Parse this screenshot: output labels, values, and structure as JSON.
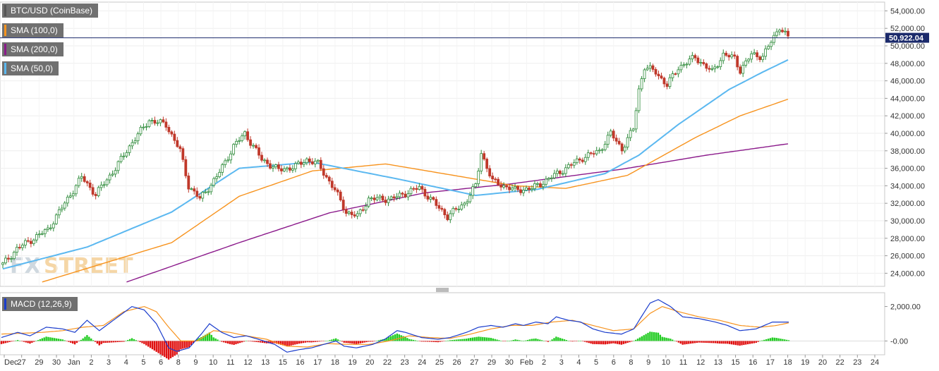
{
  "legends": [
    {
      "label": "BTC/USD (CoinBase)",
      "color": "#555555"
    },
    {
      "label": "SMA (100,0)",
      "color": "#f7931e"
    },
    {
      "label": "SMA (200,0)",
      "color": "#8b1a8b"
    },
    {
      "label": "SMA (50,0)",
      "color": "#5bb8f0"
    }
  ],
  "macd_legend": {
    "label": "MACD (12,26,9)",
    "color": "#1a3ccc"
  },
  "watermark": {
    "part1": "FX",
    "part2": "STREET"
  },
  "price_badge": "50,922.04",
  "chart_data": [
    {
      "type": "candlestick",
      "title": "BTC/USD (CoinBase)",
      "ylim": [
        22500,
        55000
      ],
      "y_ticks": [
        "24,000.00",
        "26,000.00",
        "28,000.00",
        "30,000.00",
        "32,000.00",
        "34,000.00",
        "36,000.00",
        "38,000.00",
        "40,000.00",
        "42,000.00",
        "44,000.00",
        "46,000.00",
        "48,000.00",
        "50,000.00",
        "52,000.00",
        "54,000.00"
      ],
      "x_tick_labels": [
        "Dec",
        "27",
        "29",
        "30",
        "Jan",
        "2",
        "3",
        "4",
        "5",
        "6",
        "8",
        "9",
        "10",
        "11",
        "12",
        "13",
        "15",
        "16",
        "17",
        "18",
        "19",
        "20",
        "22",
        "23",
        "24",
        "25",
        "26",
        "27",
        "29",
        "30",
        "Feb",
        "2",
        "3",
        "4",
        "5",
        "6",
        "8",
        "9",
        "10",
        "11",
        "12",
        "13",
        "15",
        "16",
        "17",
        "18",
        "19",
        "20",
        "22",
        "23",
        "24"
      ],
      "current_price": 50922.04,
      "price_keypoints": [
        [
          0,
          25000
        ],
        [
          5,
          26800
        ],
        [
          10,
          27800
        ],
        [
          16,
          29000
        ],
        [
          22,
          32000
        ],
        [
          28,
          35000
        ],
        [
          33,
          33000
        ],
        [
          40,
          36000
        ],
        [
          46,
          39000
        ],
        [
          52,
          41500
        ],
        [
          58,
          41000
        ],
        [
          63,
          38000
        ],
        [
          66,
          34000
        ],
        [
          70,
          32500
        ],
        [
          76,
          35000
        ],
        [
          82,
          38500
        ],
        [
          86,
          40000
        ],
        [
          92,
          37000
        ],
        [
          98,
          35800
        ],
        [
          104,
          36200
        ],
        [
          108,
          37000
        ],
        [
          112,
          36500
        ],
        [
          118,
          33500
        ],
        [
          122,
          31000
        ],
        [
          126,
          30500
        ],
        [
          130,
          32500
        ],
        [
          138,
          32500
        ],
        [
          148,
          33800
        ],
        [
          154,
          31800
        ],
        [
          158,
          30500
        ],
        [
          164,
          32000
        ],
        [
          168,
          34000
        ],
        [
          170,
          37800
        ],
        [
          174,
          34500
        ],
        [
          182,
          33500
        ],
        [
          188,
          33700
        ],
        [
          194,
          34800
        ],
        [
          200,
          36000
        ],
        [
          206,
          37200
        ],
        [
          212,
          38000
        ],
        [
          216,
          40000
        ],
        [
          220,
          38200
        ],
        [
          224,
          40500
        ],
        [
          226,
          45000
        ],
        [
          228,
          47600
        ],
        [
          232,
          47000
        ],
        [
          236,
          45500
        ],
        [
          240,
          47500
        ],
        [
          246,
          48700
        ],
        [
          252,
          47000
        ],
        [
          256,
          49000
        ],
        [
          260,
          48600
        ],
        [
          262,
          47200
        ],
        [
          266,
          49000
        ],
        [
          270,
          48800
        ],
        [
          274,
          51000
        ],
        [
          276,
          52200
        ],
        [
          279,
          50922
        ]
      ],
      "sma50": [
        [
          0,
          24500
        ],
        [
          30,
          27000
        ],
        [
          60,
          31000
        ],
        [
          84,
          36000
        ],
        [
          110,
          36700
        ],
        [
          140,
          34800
        ],
        [
          168,
          32900
        ],
        [
          190,
          33600
        ],
        [
          214,
          35400
        ],
        [
          226,
          37500
        ],
        [
          240,
          41000
        ],
        [
          258,
          45000
        ],
        [
          270,
          47000
        ],
        [
          279,
          48400
        ]
      ],
      "sma100": [
        [
          14,
          23000
        ],
        [
          60,
          27500
        ],
        [
          84,
          32800
        ],
        [
          110,
          35700
        ],
        [
          136,
          36500
        ],
        [
          160,
          35200
        ],
        [
          182,
          34000
        ],
        [
          200,
          33700
        ],
        [
          222,
          35200
        ],
        [
          246,
          39500
        ],
        [
          262,
          42000
        ],
        [
          279,
          43900
        ]
      ],
      "sma200": [
        [
          44,
          23000
        ],
        [
          84,
          27500
        ],
        [
          116,
          30900
        ],
        [
          150,
          33200
        ],
        [
          180,
          34200
        ],
        [
          220,
          35900
        ],
        [
          250,
          37500
        ],
        [
          279,
          38800
        ]
      ],
      "macd_ylim": [
        -800,
        2800
      ],
      "macd_ticks": [
        "2,000.00",
        "-0.00"
      ],
      "macd_line": [
        [
          0,
          200
        ],
        [
          8,
          500
        ],
        [
          14,
          300
        ],
        [
          22,
          800
        ],
        [
          30,
          700
        ],
        [
          36,
          500
        ],
        [
          42,
          1200
        ],
        [
          48,
          600
        ],
        [
          56,
          1300
        ],
        [
          64,
          2000
        ],
        [
          70,
          1800
        ],
        [
          76,
          1000
        ],
        [
          82,
          -400
        ],
        [
          86,
          -600
        ],
        [
          92,
          -400
        ],
        [
          98,
          400
        ],
        [
          102,
          1000
        ],
        [
          108,
          500
        ],
        [
          114,
          200
        ],
        [
          120,
          300
        ],
        [
          126,
          100
        ],
        [
          134,
          -200
        ],
        [
          140,
          -650
        ],
        [
          146,
          -500
        ],
        [
          152,
          -400
        ],
        [
          158,
          -200
        ],
        [
          164,
          0
        ],
        [
          168,
          -300
        ],
        [
          174,
          -400
        ],
        [
          182,
          -200
        ],
        [
          188,
          100
        ],
        [
          194,
          600
        ],
        [
          198,
          500
        ],
        [
          206,
          200
        ],
        [
          214,
          100
        ],
        [
          220,
          200
        ],
        [
          228,
          500
        ],
        [
          234,
          800
        ],
        [
          240,
          900
        ],
        [
          246,
          800
        ],
        [
          252,
          1000
        ],
        [
          256,
          900
        ],
        [
          262,
          1100
        ],
        [
          268,
          1000
        ],
        [
          272,
          1400
        ],
        [
          278,
          1200
        ],
        [
          284,
          1100
        ],
        [
          290,
          700
        ],
        [
          296,
          500
        ],
        [
          304,
          400
        ],
        [
          310,
          700
        ],
        [
          318,
          2200
        ],
        [
          322,
          2400
        ],
        [
          328,
          2000
        ],
        [
          334,
          1400
        ],
        [
          342,
          1300
        ],
        [
          350,
          1100
        ],
        [
          356,
          900
        ],
        [
          362,
          600
        ],
        [
          370,
          700
        ],
        [
          378,
          1100
        ],
        [
          386,
          1100
        ]
      ],
      "signal_line": [
        [
          0,
          400
        ],
        [
          10,
          450
        ],
        [
          20,
          500
        ],
        [
          30,
          600
        ],
        [
          40,
          800
        ],
        [
          50,
          900
        ],
        [
          60,
          1700
        ],
        [
          70,
          2000
        ],
        [
          76,
          1700
        ],
        [
          82,
          800
        ],
        [
          88,
          0
        ],
        [
          96,
          0
        ],
        [
          104,
          600
        ],
        [
          112,
          500
        ],
        [
          120,
          300
        ],
        [
          130,
          100
        ],
        [
          140,
          -300
        ],
        [
          150,
          -350
        ],
        [
          160,
          -150
        ],
        [
          170,
          -200
        ],
        [
          180,
          -200
        ],
        [
          190,
          0
        ],
        [
          200,
          300
        ],
        [
          210,
          200
        ],
        [
          220,
          150
        ],
        [
          230,
          400
        ],
        [
          240,
          700
        ],
        [
          250,
          900
        ],
        [
          260,
          900
        ],
        [
          270,
          1100
        ],
        [
          280,
          1200
        ],
        [
          290,
          900
        ],
        [
          300,
          600
        ],
        [
          310,
          700
        ],
        [
          318,
          1600
        ],
        [
          324,
          2000
        ],
        [
          332,
          1700
        ],
        [
          342,
          1400
        ],
        [
          352,
          1200
        ],
        [
          362,
          900
        ],
        [
          372,
          800
        ],
        [
          380,
          900
        ],
        [
          386,
          1050
        ]
      ]
    }
  ]
}
